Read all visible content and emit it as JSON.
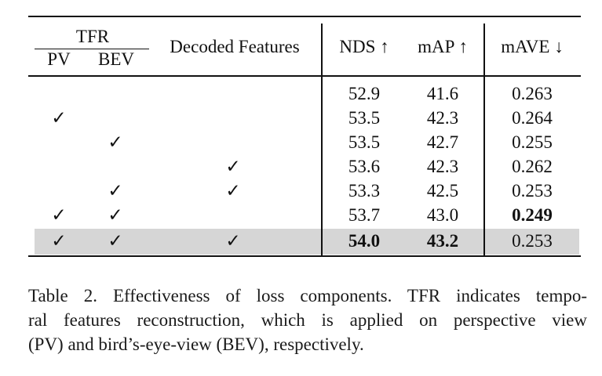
{
  "table": {
    "headers": {
      "tfr_group": "TFR",
      "pv": "PV",
      "bev": "BEV",
      "decoded": "Decoded Features",
      "nds": "NDS ↑",
      "map": "mAP ↑",
      "mave": "mAVE ↓"
    },
    "check_glyph": "✓",
    "rows": [
      {
        "pv": "",
        "bev": "",
        "dec": "",
        "nds": "52.9",
        "map": "41.6",
        "mave": "0.263"
      },
      {
        "pv": "✓",
        "bev": "",
        "dec": "",
        "nds": "53.5",
        "map": "42.3",
        "mave": "0.264"
      },
      {
        "pv": "",
        "bev": "✓",
        "dec": "",
        "nds": "53.5",
        "map": "42.7",
        "mave": "0.255"
      },
      {
        "pv": "",
        "bev": "",
        "dec": "✓",
        "nds": "53.6",
        "map": "42.3",
        "mave": "0.262"
      },
      {
        "pv": "",
        "bev": "✓",
        "dec": "✓",
        "nds": "53.3",
        "map": "42.5",
        "mave": "0.253"
      },
      {
        "pv": "✓",
        "bev": "✓",
        "dec": "",
        "nds": "53.7",
        "map": "43.0",
        "mave": "0.249"
      },
      {
        "pv": "✓",
        "bev": "✓",
        "dec": "✓",
        "nds": "54.0",
        "map": "43.2",
        "mave": "0.253"
      }
    ],
    "highlight_color": "#d6d6d6"
  },
  "caption": {
    "line1": "Table 2. Effectiveness of loss components. TFR indicates tempo-",
    "line2": "ral features reconstruction, which is applied on perspective view",
    "line3": "(PV) and bird’s-eye-view (BEV), respectively."
  }
}
